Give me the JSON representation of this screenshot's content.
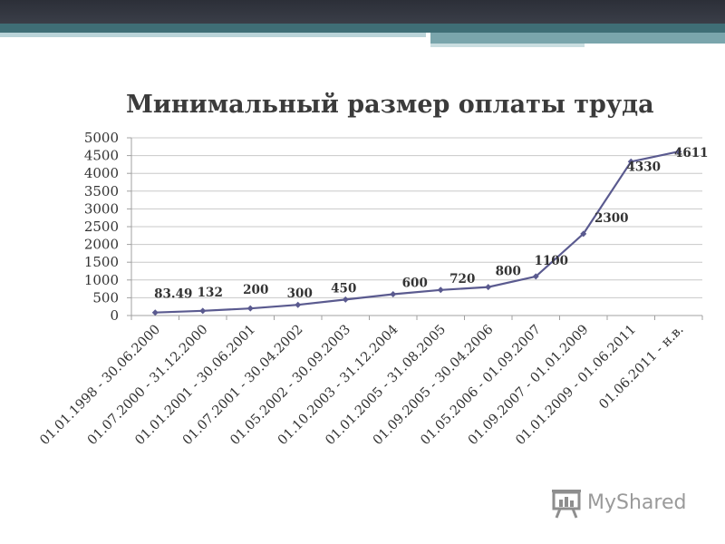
{
  "slide": {
    "watermark": "MyShared",
    "watermark_icon": "presentation-board-icon",
    "colors": {
      "header_dark": "#2c2f38",
      "header_teal": "#3f6e76",
      "line": "#5a5a8f",
      "grid": "#c8c8c8",
      "text": "#333333"
    }
  },
  "chart_data": {
    "type": "line",
    "title": "Минимальный размер оплаты труда",
    "xlabel": "",
    "ylabel": "",
    "ylim": [
      0,
      5000
    ],
    "yticks": [
      0,
      500,
      1000,
      1500,
      2000,
      2500,
      3000,
      3500,
      4000,
      4500,
      5000
    ],
    "grid": true,
    "legend": "none",
    "categories": [
      "01.01.1998 - 30.06.2000",
      "01.07.2000 - 31.12.2000",
      "01.01.2001 - 30.06.2001",
      "01.07.2001 - 30.04.2002",
      "01.05.2002 - 30.09.2003",
      "01.10.2003 - 31.12.2004",
      "01.01.2005 - 31.08.2005",
      "01.09.2005 - 30.04.2006",
      "01.05.2006 - 01.09.2007",
      "01.09.2007 - 01.01.2009",
      "01.01.2009 - 01.06.2011",
      "01.06.2011 - н.в."
    ],
    "values": [
      83.49,
      132,
      200,
      300,
      450,
      600,
      720,
      800,
      1100,
      2300,
      4330,
      4611
    ],
    "data_labels": [
      "83.49",
      "132",
      "200",
      "300",
      "450",
      "600",
      "720",
      "800",
      "1100",
      "2300",
      "4330",
      "4611"
    ]
  }
}
